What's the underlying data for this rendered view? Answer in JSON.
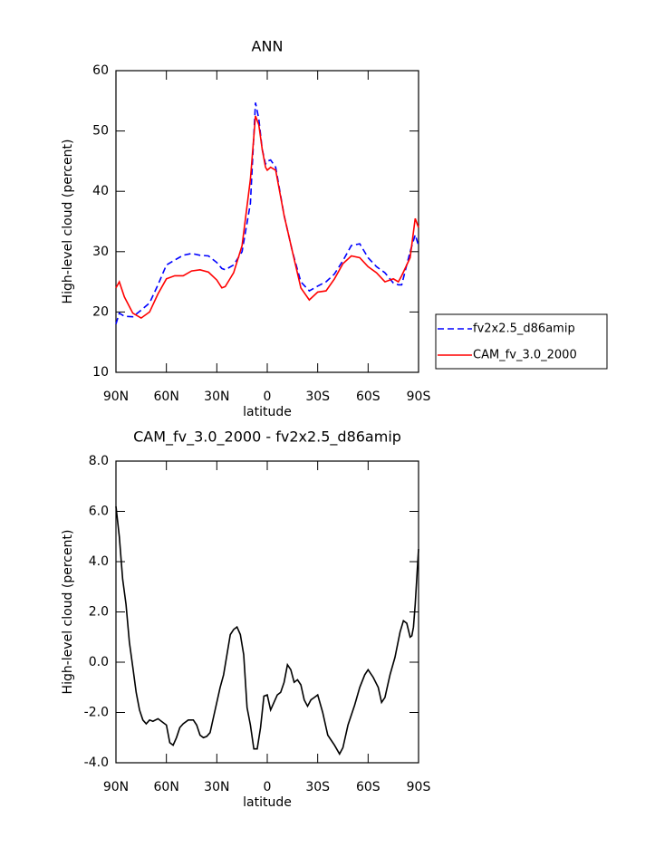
{
  "chart_data": [
    {
      "type": "line",
      "title": "ANN",
      "xlabel": "latitude",
      "ylabel": "High-level cloud (percent)",
      "x": [
        90,
        88,
        85,
        80,
        75,
        70,
        65,
        60,
        55,
        50,
        45,
        40,
        35,
        30,
        27,
        25,
        20,
        15,
        10,
        7,
        5,
        3,
        1,
        0,
        -2,
        -5,
        -10,
        -15,
        -20,
        -25,
        -30,
        -35,
        -40,
        -45,
        -50,
        -55,
        -60,
        -65,
        -70,
        -75,
        -78,
        -80,
        -85,
        -88,
        -90
      ],
      "series": [
        {
          "name": "fv2x2.5_d86amip",
          "color": "#0000ff",
          "dash": "dashed",
          "values": [
            18,
            19.8,
            19.3,
            19.2,
            20.3,
            21.5,
            24.5,
            27.8,
            28.6,
            29.4,
            29.7,
            29.4,
            29.3,
            28.2,
            27.2,
            27,
            27.8,
            30,
            38,
            54.7,
            52,
            47,
            44.5,
            45,
            45.2,
            44,
            36,
            30,
            25,
            23.5,
            24.3,
            25,
            26.3,
            28.5,
            31,
            31.3,
            29,
            27.5,
            26.5,
            24.8,
            24.5,
            24.5,
            30,
            32.8,
            31
          ]
        },
        {
          "name": "CAM_fv_3.0_2000",
          "color": "#ff0000",
          "dash": "solid",
          "values": [
            24,
            25,
            22.5,
            19.8,
            19,
            20,
            23,
            25.5,
            26,
            26,
            26.8,
            27,
            26.6,
            25.3,
            24,
            24.2,
            26.5,
            31,
            42,
            52.5,
            51,
            47,
            44,
            43.5,
            44,
            43.5,
            36,
            30,
            24,
            22,
            23.3,
            23.5,
            25.5,
            28,
            29.3,
            29,
            27.5,
            26.5,
            25,
            25.5,
            25,
            26,
            29,
            35.5,
            34
          ]
        }
      ],
      "xlim": [
        90,
        -90
      ],
      "xticks": [
        {
          "value": 90,
          "label": "90N"
        },
        {
          "value": 60,
          "label": "60N"
        },
        {
          "value": 30,
          "label": "30N"
        },
        0,
        {
          "value": -30,
          "label": "30S"
        },
        {
          "value": -60,
          "label": "60S"
        },
        {
          "value": -90,
          "label": "90S"
        }
      ],
      "ylim": [
        10,
        60
      ],
      "yticks": [
        10,
        20,
        30,
        40,
        50,
        60
      ],
      "legend": "right"
    },
    {
      "type": "line",
      "title": "CAM_fv_3.0_2000 - fv2x2.5_d86amip",
      "xlabel": "latitude",
      "ylabel": "High-level cloud (percent)",
      "x": [
        90,
        88,
        86,
        84,
        82,
        80,
        78,
        76,
        74,
        72,
        70,
        68,
        65,
        62,
        60,
        58,
        56,
        54,
        52,
        50,
        47,
        44,
        42,
        40,
        38,
        36,
        34,
        32,
        28,
        26,
        24,
        22,
        20,
        18,
        16,
        14,
        12,
        10,
        8,
        6,
        4,
        2,
        0,
        -2,
        -4,
        -6,
        -8,
        -10,
        -12,
        -14,
        -16,
        -18,
        -20,
        -22,
        -24,
        -26,
        -28,
        -30,
        -33,
        -36,
        -40,
        -43,
        -45,
        -48,
        -52,
        -55,
        -58,
        -60,
        -63,
        -66,
        -68,
        -70,
        -73,
        -76,
        -79,
        -81,
        -83,
        -85,
        -86,
        -87,
        -88,
        -90
      ],
      "series": [
        {
          "name": null,
          "color": "#000000",
          "dash": "solid",
          "values": [
            6.2,
            5,
            3.3,
            2.3,
            0.8,
            -0.2,
            -1.2,
            -1.9,
            -2.3,
            -2.45,
            -2.3,
            -2.35,
            -2.25,
            -2.4,
            -2.5,
            -3.2,
            -3.3,
            -3,
            -2.6,
            -2.45,
            -2.3,
            -2.3,
            -2.5,
            -2.9,
            -3,
            -2.95,
            -2.8,
            -2.2,
            -1,
            -0.5,
            0.3,
            1.1,
            1.3,
            1.4,
            1.1,
            0.3,
            -1.8,
            -2.5,
            -3.45,
            -3.45,
            -2.6,
            -1.35,
            -1.3,
            -1.9,
            -1.6,
            -1.3,
            -1.2,
            -0.8,
            -0.1,
            -0.3,
            -0.8,
            -0.7,
            -0.9,
            -1.5,
            -1.75,
            -1.5,
            -1.4,
            -1.3,
            -2,
            -2.9,
            -3.3,
            -3.65,
            -3.4,
            -2.5,
            -1.7,
            -1,
            -0.5,
            -0.3,
            -0.6,
            -1,
            -1.6,
            -1.4,
            -0.5,
            0.2,
            1.2,
            1.65,
            1.55,
            1,
            1.05,
            1.4,
            2.3,
            4.5
          ]
        }
      ],
      "xlim": [
        90,
        -90
      ],
      "xticks": [
        {
          "value": 90,
          "label": "90N"
        },
        {
          "value": 60,
          "label": "60N"
        },
        {
          "value": 30,
          "label": "30N"
        },
        0,
        {
          "value": -30,
          "label": "30S"
        },
        {
          "value": -60,
          "label": "60S"
        },
        {
          "value": -90,
          "label": "90S"
        }
      ],
      "ylim": [
        -4,
        8
      ],
      "yticks": [
        {
          "value": -4,
          "label": "-4.0"
        },
        {
          "value": -2,
          "label": "-2.0"
        },
        {
          "value": 0,
          "label": "0.0"
        },
        {
          "value": 2,
          "label": "2.0"
        },
        {
          "value": 4,
          "label": "4.0"
        },
        {
          "value": 6,
          "label": "6.0"
        },
        {
          "value": 8,
          "label": "8.0"
        }
      ]
    }
  ]
}
